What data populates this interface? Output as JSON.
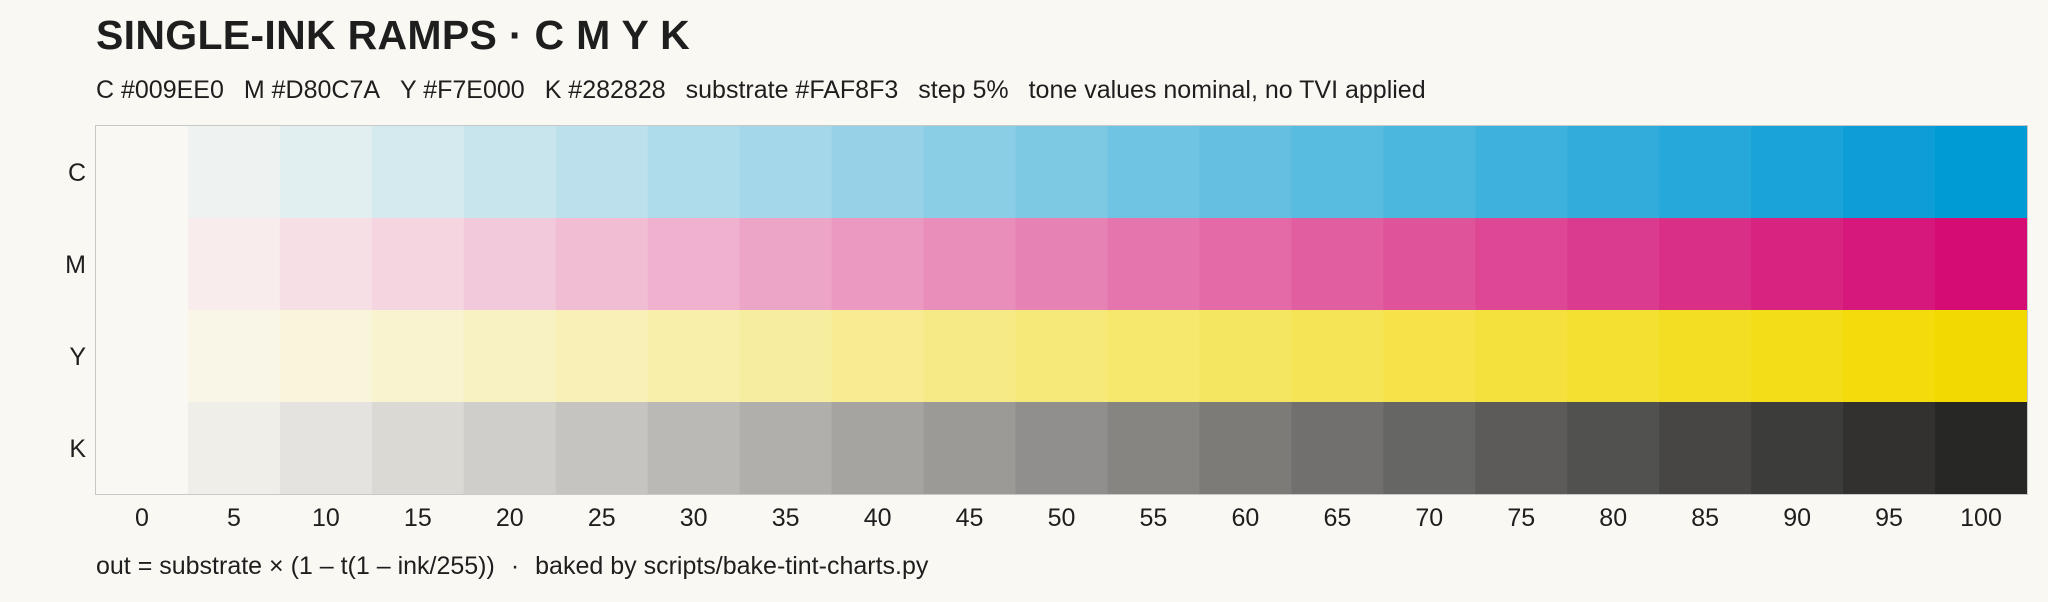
{
  "title": "SINGLE-INK RAMPS · C M Y K",
  "specs": [
    "C #009EE0",
    "M #D80C7A",
    "Y #F7E000",
    "K #282828",
    "substrate #FAF8F3",
    "step 5%",
    "tone values nominal, no TVI applied"
  ],
  "footer": {
    "formula": "out = substrate × (1 – t(1 – ink/255))",
    "separator": "·",
    "credit": "baked by scripts/bake-tint-charts.py"
  },
  "colors": {
    "substrate": "#FAF8F3",
    "frame": "#C8C8C8",
    "text": "#1e1e1e"
  },
  "chart_data": {
    "type": "heatmap",
    "x": [
      0,
      5,
      10,
      15,
      20,
      25,
      30,
      35,
      40,
      45,
      50,
      55,
      60,
      65,
      70,
      75,
      80,
      85,
      90,
      95,
      100
    ],
    "xtick_labels": [
      "0",
      "5",
      "10",
      "15",
      "20",
      "25",
      "30",
      "35",
      "40",
      "45",
      "50",
      "55",
      "60",
      "65",
      "70",
      "75",
      "80",
      "85",
      "90",
      "95",
      "100"
    ],
    "series": [
      {
        "name": "C",
        "color": "#009EE0"
      },
      {
        "name": "M",
        "color": "#D80C7A"
      },
      {
        "name": "Y",
        "color": "#F7E000"
      },
      {
        "name": "K",
        "color": "#282828"
      }
    ],
    "substrate": "#FAF8F3",
    "x_unit": "%"
  }
}
